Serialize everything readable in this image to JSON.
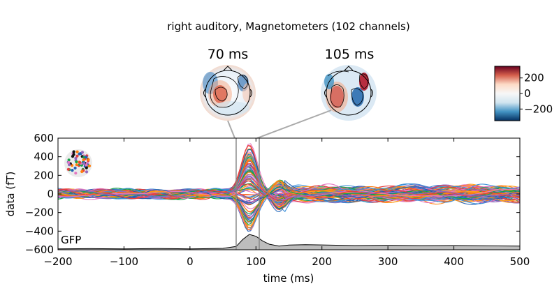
{
  "title": "right auditory, Magnetometers (102 channels)",
  "topomaps": [
    {
      "label": "70 ms",
      "time": 70
    },
    {
      "label": "105 ms",
      "time": 105
    }
  ],
  "colorbar": {
    "ticks": [
      200,
      0,
      -200
    ],
    "tick_labels": [
      "200",
      "0",
      "−200"
    ],
    "range": [
      -350,
      350
    ],
    "colors": [
      "#67001f",
      "#d6604d",
      "#fddbc7",
      "#f7f7f7",
      "#d1e5f0",
      "#4393c3",
      "#053061"
    ]
  },
  "gfp_label": "GFP",
  "chart_data": {
    "type": "line",
    "xlabel": "time (ms)",
    "ylabel": "data (fT)",
    "xlim": [
      -200,
      500
    ],
    "ylim": [
      -600,
      600
    ],
    "xticks": [
      -200,
      -100,
      0,
      100,
      200,
      300,
      400,
      500
    ],
    "xtick_labels": [
      "−200",
      "−100",
      "0",
      "100",
      "200",
      "300",
      "400",
      "500"
    ],
    "yticks": [
      600,
      400,
      200,
      0,
      -200,
      -400,
      -600
    ],
    "ytick_labels": [
      "600",
      "400",
      "200",
      "0",
      "−200",
      "−400",
      "−600"
    ],
    "vlines": [
      70,
      105
    ],
    "n_channels": 102,
    "peak": {
      "x": 90,
      "max_y": 520,
      "min_y": -390
    },
    "gfp": {
      "x": [
        -200,
        -150,
        -100,
        -50,
        0,
        20,
        50,
        70,
        80,
        90,
        100,
        110,
        120,
        135,
        150,
        175,
        200,
        250,
        300,
        350,
        400,
        450,
        500
      ],
      "y": [
        -590,
        -588,
        -590,
        -587,
        -590,
        -589,
        -585,
        -565,
        -490,
        -435,
        -455,
        -505,
        -540,
        -560,
        -550,
        -545,
        -548,
        -555,
        -552,
        -556,
        -554,
        -558,
        -560
      ]
    },
    "colors": [
      "#1f5fb4",
      "#ff7f0e",
      "#16a34a",
      "#e377c2",
      "#e83e3e",
      "#9467bd",
      "#3b8fd9",
      "#ff9f1a"
    ]
  }
}
